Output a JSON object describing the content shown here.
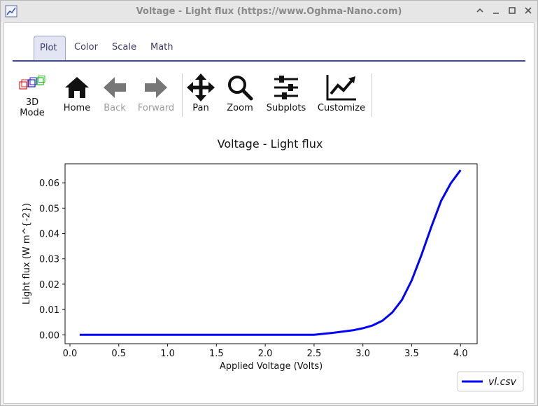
{
  "window": {
    "title": "Voltage - Light flux (https://www.Oghma-Nano.com)"
  },
  "tabs": [
    {
      "label": "Plot",
      "active": true
    },
    {
      "label": "Color",
      "active": false
    },
    {
      "label": "Scale",
      "active": false
    },
    {
      "label": "Math",
      "active": false
    }
  ],
  "toolbar": {
    "mode3d_line1": "3D",
    "mode3d_line2": "Mode",
    "home": "Home",
    "back": "Back",
    "forward": "Forward",
    "pan": "Pan",
    "zoom": "Zoom",
    "subplots": "Subplots",
    "customize": "Customize"
  },
  "chart_data": {
    "type": "line",
    "title": "Voltage - Light flux",
    "xlabel": "Applied Voltage (Volts)",
    "ylabel": "Light flux (W m^{-2})",
    "xlim": [
      -0.05,
      4.17
    ],
    "ylim": [
      -0.0035,
      0.0675
    ],
    "xticks": [
      0.0,
      0.5,
      1.0,
      1.5,
      2.0,
      2.5,
      3.0,
      3.5,
      4.0
    ],
    "xtick_labels": [
      "0.0",
      "0.5",
      "1.0",
      "1.5",
      "2.0",
      "2.5",
      "3.0",
      "3.5",
      "4.0"
    ],
    "yticks": [
      0.0,
      0.01,
      0.02,
      0.03,
      0.04,
      0.05,
      0.06
    ],
    "ytick_labels": [
      "0.00",
      "0.01",
      "0.02",
      "0.03",
      "0.04",
      "0.05",
      "0.06"
    ],
    "grid": false,
    "legend_position": "bottom-right",
    "series": [
      {
        "name": "vl.csv",
        "color": "#0000ff",
        "x": [
          0.1,
          0.5,
          1.0,
          1.5,
          2.0,
          2.5,
          2.7,
          2.9,
          3.0,
          3.1,
          3.2,
          3.3,
          3.4,
          3.5,
          3.6,
          3.7,
          3.8,
          3.9,
          4.0
        ],
        "y": [
          0.0,
          0.0,
          0.0,
          0.0,
          0.0,
          0.0,
          0.0008,
          0.0018,
          0.0026,
          0.0037,
          0.0056,
          0.0088,
          0.0138,
          0.0215,
          0.0315,
          0.0425,
          0.0528,
          0.0598,
          0.065
        ]
      }
    ]
  },
  "icons": {
    "app": "plot-icon",
    "mode3d": "cube-icon",
    "home": "home-icon",
    "back": "arrow-left-icon",
    "forward": "arrow-right-icon",
    "pan": "move-icon",
    "zoom": "magnifier-icon",
    "subplots": "sliders-icon",
    "customize": "chart-line-icon"
  }
}
